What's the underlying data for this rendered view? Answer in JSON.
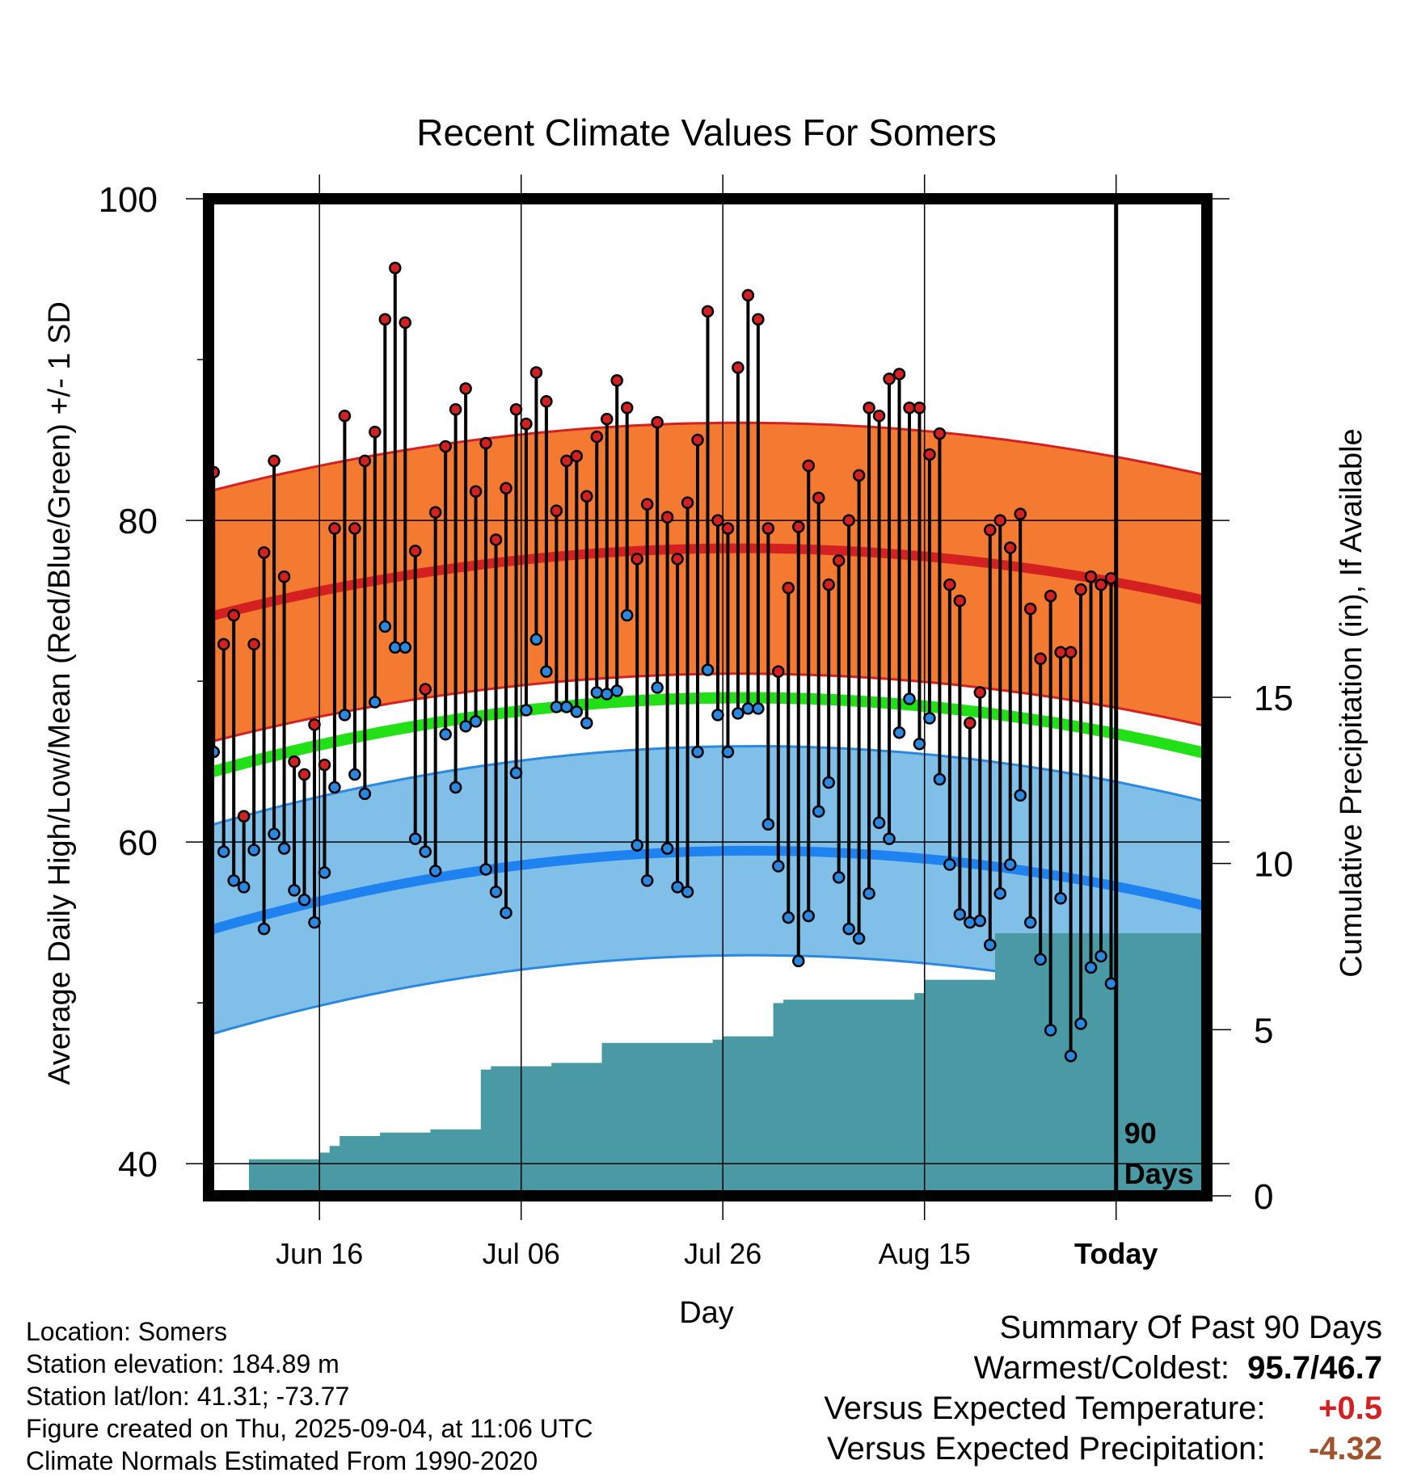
{
  "chart_data": {
    "type": "line",
    "title": "Recent Climate Values For Somers",
    "xlabel": "Day",
    "ylabel": "Average Daily High/Low/Mean (Red/Blue/Green) +/- 1 SD",
    "y2label": "Cumulative Precipitation (in), If Available",
    "ylim": [
      38,
      100
    ],
    "y2lim": [
      0,
      30
    ],
    "yticks": [
      "40",
      "60",
      "80",
      "100"
    ],
    "y2ticks": [
      "0",
      "5",
      "10",
      "15"
    ],
    "xticks": [
      "Jun 16",
      "Jul 06",
      "Jul 26",
      "Aug 15",
      "Today"
    ],
    "today_label": "90 Days",
    "x_start": -90,
    "x_end": 9,
    "xtick_days": [
      -79,
      -59,
      -39,
      -19,
      0
    ],
    "normals": {
      "high_mean": [
        74,
        82,
        75
      ],
      "high_sd": 7.8,
      "low_mean": [
        54.5,
        63.6,
        56
      ],
      "low_sd": 6.5,
      "mean": [
        64.3,
        73,
        65.5
      ]
    },
    "series": [
      {
        "name": "",
        "color": "#d42020",
        "values": [
          83,
          72.3,
          74.1,
          61.6,
          72.3,
          78,
          83.7,
          76.5,
          65,
          64.2,
          67.3,
          64.8,
          79.5,
          86.5,
          79.5,
          83.7,
          85.5,
          92.5,
          95.7,
          92.3,
          78.1,
          69.5,
          80.5,
          84.6,
          86.9,
          88.2,
          81.8,
          84.8,
          78.8,
          82,
          86.9,
          86,
          89.2,
          87.4,
          80.6,
          83.7,
          84,
          81.5,
          85.2,
          86.3,
          88.7,
          87,
          77.6,
          81,
          86.1,
          80.2,
          77.6,
          81.1,
          85,
          93,
          80,
          79.5,
          89.5,
          94,
          92.5,
          79.5,
          70.6,
          75.8,
          79.6,
          83.4,
          81.4,
          76,
          77.5,
          80,
          82.8,
          87,
          86.5,
          88.8,
          89.1,
          87,
          87,
          84.1,
          85.4,
          76,
          75,
          67.4,
          69.3,
          79.4,
          80,
          78.3,
          80.4,
          74.5,
          71.4,
          75.3,
          71.8,
          71.8,
          75.7,
          76.5,
          76,
          76.4
        ]
      },
      {
        "name": "",
        "color": "#2a88e0",
        "values": [
          65.6,
          59.4,
          57.6,
          57.2,
          59.5,
          54.6,
          60.5,
          59.6,
          57,
          56.4,
          55,
          58.1,
          63.4,
          67.9,
          64.2,
          63,
          68.7,
          73.4,
          72.1,
          72.1,
          60.2,
          59.4,
          58.2,
          66.7,
          63.4,
          67.2,
          67.5,
          58.3,
          56.9,
          55.6,
          64.3,
          68.2,
          72.6,
          70.6,
          68.4,
          68.4,
          68.1,
          67.4,
          69.3,
          69.2,
          69.4,
          74.1,
          59.8,
          57.6,
          69.6,
          59.6,
          57.2,
          56.9,
          65.6,
          70.7,
          67.9,
          65.6,
          68,
          68.3,
          68.3,
          61.1,
          58.5,
          55.3,
          52.6,
          55.4,
          61.9,
          63.7,
          57.8,
          54.6,
          54,
          56.8,
          61.2,
          60.2,
          66.8,
          68.9,
          66.1,
          67.7,
          63.9,
          58.6,
          55.5,
          55,
          55.1,
          53.6,
          56.8,
          58.6,
          62.9,
          55,
          52.7,
          48.3,
          56.5,
          46.7,
          48.7,
          52.2,
          52.9,
          51.2
        ]
      }
    ],
    "precip": {
      "name": "",
      "color": "#4a9aa6",
      "cumulative_in": [
        0,
        0,
        0,
        0,
        1.1,
        1.1,
        1.1,
        1.1,
        1.1,
        1.1,
        1.1,
        1.3,
        1.5,
        1.8,
        1.8,
        1.8,
        1.8,
        1.9,
        1.9,
        1.9,
        1.9,
        1.9,
        2,
        2,
        2,
        2,
        2,
        3.8,
        3.9,
        3.9,
        3.9,
        3.9,
        3.9,
        3.9,
        4,
        4,
        4,
        4,
        4,
        4.6,
        4.6,
        4.6,
        4.6,
        4.6,
        4.6,
        4.6,
        4.6,
        4.6,
        4.6,
        4.6,
        4.7,
        4.8,
        4.8,
        4.8,
        4.8,
        4.8,
        5.8,
        5.9,
        5.9,
        5.9,
        5.9,
        5.9,
        5.9,
        5.9,
        5.9,
        5.9,
        5.9,
        5.9,
        5.9,
        5.9,
        6.1,
        6.5,
        6.5,
        6.5,
        6.5,
        6.5,
        6.5,
        6.5,
        7.9,
        7.9,
        7.9,
        7.9,
        7.9,
        7.9,
        7.9,
        7.9,
        7.9,
        7.9,
        7.9,
        7.9
      ]
    }
  },
  "footer": {
    "location": "Location: Somers",
    "elevation": "Station elevation: 184.89 m",
    "latlon": "Station lat/lon: 41.31; -73.77",
    "created": "Figure created on Thu, 2025-09-04, at 11:06 UTC",
    "normals": "Climate Normals Estimated From 1990-2020"
  },
  "summary": {
    "title": "Summary Of Past 90 Days",
    "warm_label": "Warmest/Coldest:",
    "warm_val": "95.7/46.7",
    "temp_label": "Versus Expected Temperature:",
    "temp_val": "+0.5",
    "temp_color": "#d42020",
    "precip_label": "Versus Expected Precipitation:",
    "precip_val": "-4.32",
    "precip_color": "#a0522d"
  }
}
